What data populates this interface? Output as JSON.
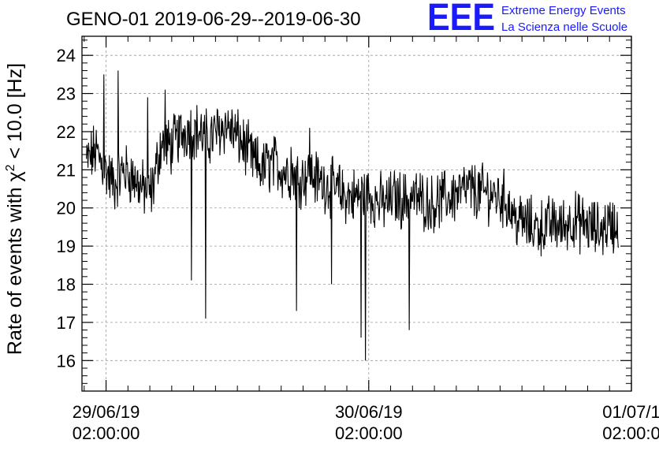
{
  "chart_data": {
    "type": "line",
    "title": "GENO-01 2019-06-29--2019-06-30",
    "ylabel_prefix": "Rate of events with χ",
    "ylabel_sup": "2",
    "ylabel_suffix": " < 10.0 [Hz]",
    "xlabel": "",
    "ylim": [
      15.2,
      24.5
    ],
    "xlim_hours_from_first_tick": [
      -2.2,
      48.0
    ],
    "grid": true,
    "y_ticks": [
      "16",
      "17",
      "18",
      "19",
      "20",
      "21",
      "22",
      "23",
      "24"
    ],
    "x_ticks": [
      {
        "date": "29/06/19",
        "time": "02:00:00"
      },
      {
        "date": "30/06/19",
        "time": "02:00:00"
      },
      {
        "date": "01/07/1",
        "time": "02:00:0"
      }
    ],
    "series": [
      {
        "color": "#000000",
        "x_start": "2019-06-29 00:00",
        "x_end": "2019-06-30 23:59",
        "values": [
          21.2,
          21.5,
          21.0,
          20.6,
          21.0,
          20.8,
          20.5,
          20.4,
          21.7,
          21.6,
          21.9,
          22.1,
          22.0,
          21.8,
          22.0,
          22.2,
          21.9,
          21.6,
          21.2,
          21.0,
          21.2,
          21.0,
          20.9,
          20.8,
          20.9,
          20.7,
          20.6,
          20.4,
          20.3,
          20.3,
          20.4,
          20.2,
          20.1,
          20.3,
          20.2,
          20.3,
          20.2,
          20.1,
          20.2,
          20.3,
          20.4,
          20.5,
          20.4,
          20.4,
          20.3,
          20.2,
          19.7,
          19.6,
          19.5,
          19.5,
          19.6,
          19.5,
          19.7,
          19.6,
          19.5,
          19.4,
          19.6,
          19.5
        ],
        "spikes_low": [
          [
            9.8,
            18.1
          ],
          [
            11.1,
            17.1
          ],
          [
            19.4,
            17.3
          ],
          [
            22.6,
            18.0
          ],
          [
            25.3,
            16.6
          ],
          [
            25.7,
            16.0
          ],
          [
            29.7,
            16.8
          ]
        ],
        "spikes_high": [
          [
            1.8,
            23.5
          ],
          [
            3.1,
            23.6
          ],
          [
            5.8,
            22.9
          ],
          [
            7.4,
            23.1
          ],
          [
            16.6,
            21.7
          ],
          [
            18.9,
            21.6
          ],
          [
            20.6,
            22.1
          ],
          [
            23.3,
            21.1
          ]
        ]
      }
    ]
  },
  "logo": {
    "letters": "EEE",
    "line1": "Extreme Energy Events",
    "line2": "La Scienza nelle Scuole"
  }
}
